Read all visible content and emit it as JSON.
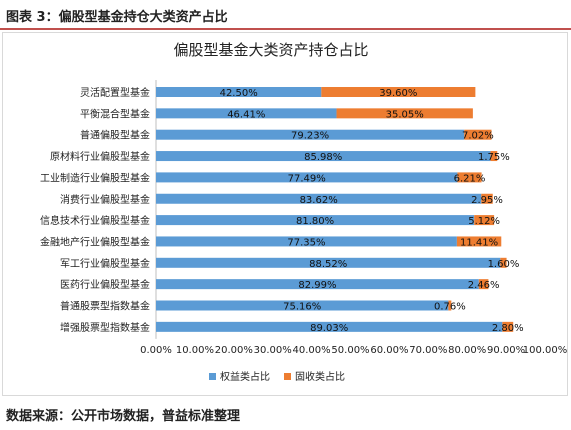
{
  "figure_caption": "图表 3：偏股型基金持仓大类资产占比",
  "source_note": "数据来源：公开市场数据，普益标准整理",
  "colors": {
    "equity": "#5b9bd5",
    "fixed_income": "#ed7d31",
    "rule": "#c0504d"
  },
  "chart_data": {
    "type": "bar",
    "orientation": "horizontal",
    "stacked": true,
    "title": "偏股型基金大类资产持仓占比",
    "xlim": [
      0,
      100
    ],
    "x_ticks": [
      "0.00%",
      "10.00%",
      "20.00%",
      "30.00%",
      "40.00%",
      "50.00%",
      "60.00%",
      "70.00%",
      "80.00%",
      "90.00%",
      "100.00%"
    ],
    "legend_position": "bottom",
    "categories": [
      "灵活配置型基金",
      "平衡混合型基金",
      "普通偏股型基金",
      "原材料行业偏股型基金",
      "工业制造行业偏股型基金",
      "消费行业偏股型基金",
      "信息技术行业偏股型基金",
      "金融地产行业偏股型基金",
      "军工行业偏股型基金",
      "医药行业偏股型基金",
      "普通股票型指数基金",
      "增强股票型指数基金"
    ],
    "series": [
      {
        "name": "权益类占比",
        "values": [
          42.5,
          46.41,
          79.23,
          85.98,
          77.49,
          83.62,
          81.8,
          77.35,
          88.52,
          82.99,
          75.16,
          89.03
        ],
        "labels": [
          "42.50%",
          "46.41%",
          "79.23%",
          "85.98%",
          "77.49%",
          "83.62%",
          "81.80%",
          "77.35%",
          "88.52%",
          "82.99%",
          "75.16%",
          "89.03%"
        ]
      },
      {
        "name": "固收类占比",
        "values": [
          39.6,
          35.05,
          7.02,
          1.75,
          6.21,
          2.95,
          5.12,
          11.41,
          1.6,
          2.46,
          0.76,
          2.8
        ],
        "labels": [
          "39.60%",
          "35.05%",
          "7.02%",
          "1.75%",
          "6.21%",
          "2.95%",
          "5.12%",
          "11.41%",
          "1.60%",
          "2.46%",
          "0.76%",
          "2.80%"
        ]
      }
    ]
  }
}
